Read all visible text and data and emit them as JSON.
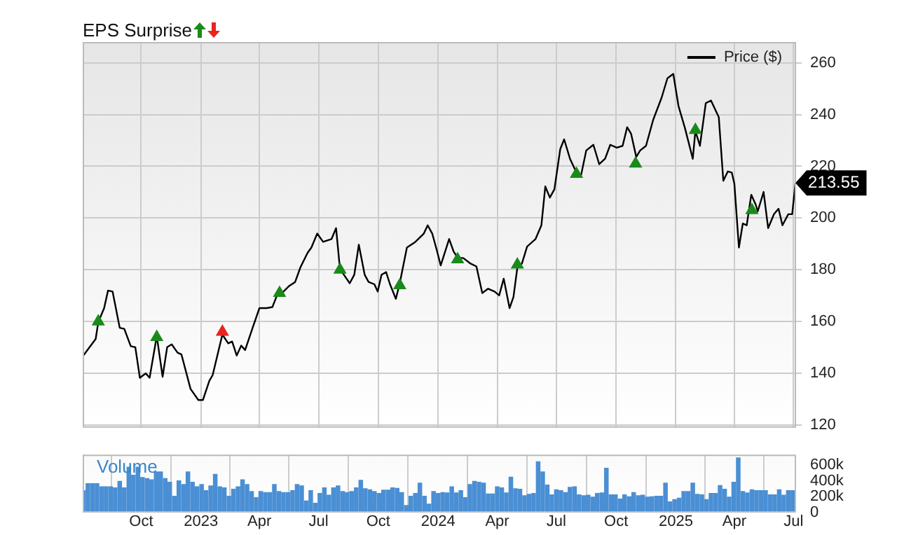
{
  "chart_data": [
    {
      "type": "line",
      "title": "EPS Surprise",
      "legend": "top right",
      "grid": true,
      "tick_labels": "y",
      "xlim": [
        "2022-07-03",
        "2025-07-05"
      ],
      "xticks": [
        {
          "value": "2022-10-01",
          "label": null
        },
        {
          "value": "2023-01-01",
          "label": null
        },
        {
          "value": "2023-04-01",
          "label": null
        },
        {
          "value": "2023-07-01",
          "label": null
        },
        {
          "value": "2023-10-01",
          "label": null
        },
        {
          "value": "2024-01-01",
          "label": null
        },
        {
          "value": "2024-04-01",
          "label": null
        },
        {
          "value": "2024-07-01",
          "label": null
        },
        {
          "value": "2024-10-01",
          "label": null
        },
        {
          "value": "2025-01-01",
          "label": null
        },
        {
          "value": "2025-04-01",
          "label": null
        },
        {
          "value": "2025-07-01",
          "label": null
        }
      ],
      "ylim": [
        119,
        268
      ],
      "yticks": [
        120,
        140,
        160,
        180,
        200,
        220,
        240,
        260
      ],
      "annotations": [
        {
          "text": "213.55",
          "x": "2025-07-04",
          "y": 213.55
        }
      ],
      "series": [
        {
          "name": "Price ($)",
          "color": "#000000",
          "x": [
            "2022-07-04",
            "2022-07-23",
            "2022-07-27",
            "2022-08-05",
            "2022-08-11",
            "2022-08-18",
            "2022-08-29",
            "2022-09-05",
            "2022-09-15",
            "2022-09-22",
            "2022-09-29",
            "2022-10-08",
            "2022-10-14",
            "2022-10-25",
            "2022-11-03",
            "2022-11-10",
            "2022-11-17",
            "2022-11-26",
            "2022-12-02",
            "2022-12-16",
            "2022-12-28",
            "2023-01-04",
            "2023-01-14",
            "2023-01-19",
            "2023-02-03",
            "2023-02-12",
            "2023-02-18",
            "2023-02-25",
            "2023-03-04",
            "2023-03-10",
            "2023-03-21",
            "2023-04-01",
            "2023-04-12",
            "2023-04-21",
            "2023-04-27",
            "2023-05-02",
            "2023-05-08",
            "2023-05-17",
            "2023-05-26",
            "2023-06-03",
            "2023-06-14",
            "2023-06-20",
            "2023-06-29",
            "2023-07-08",
            "2023-07-21",
            "2023-07-28",
            "2023-08-03",
            "2023-08-09",
            "2023-08-18",
            "2023-08-25",
            "2023-09-01",
            "2023-09-10",
            "2023-09-16",
            "2023-09-25",
            "2023-09-30",
            "2023-10-06",
            "2023-10-13",
            "2023-10-19",
            "2023-10-28",
            "2023-11-03",
            "2023-11-14",
            "2023-11-27",
            "2023-12-10",
            "2023-12-16",
            "2023-12-23",
            "2023-12-30",
            "2024-01-05",
            "2024-01-18",
            "2024-01-25",
            "2024-01-31",
            "2024-02-09",
            "2024-02-20",
            "2024-02-29",
            "2024-03-09",
            "2024-03-18",
            "2024-03-28",
            "2024-04-04",
            "2024-04-11",
            "2024-04-20",
            "2024-04-26",
            "2024-05-02",
            "2024-05-09",
            "2024-05-17",
            "2024-05-30",
            "2024-06-08",
            "2024-06-14",
            "2024-06-21",
            "2024-06-28",
            "2024-07-07",
            "2024-07-13",
            "2024-07-22",
            "2024-07-30",
            "2024-08-08",
            "2024-08-16",
            "2024-08-27",
            "2024-09-05",
            "2024-09-14",
            "2024-09-22",
            "2024-10-02",
            "2024-10-11",
            "2024-10-18",
            "2024-10-24",
            "2024-11-01",
            "2024-11-07",
            "2024-11-16",
            "2024-11-27",
            "2024-12-10",
            "2024-12-19",
            "2024-12-28",
            "2025-01-05",
            "2025-01-15",
            "2025-01-27",
            "2025-01-31",
            "2025-02-07",
            "2025-02-16",
            "2025-02-24",
            "2025-03-08",
            "2025-03-15",
            "2025-03-22",
            "2025-03-28",
            "2025-04-01",
            "2025-04-08",
            "2025-04-14",
            "2025-04-20",
            "2025-04-27",
            "2025-05-04",
            "2025-05-07",
            "2025-05-16",
            "2025-05-23",
            "2025-06-01",
            "2025-06-08",
            "2025-06-14",
            "2025-06-23",
            "2025-06-29",
            "2025-07-04"
          ],
          "values": [
            146.9,
            153.3,
            159.8,
            165.2,
            172.0,
            171.6,
            157.6,
            157.2,
            150.5,
            150.1,
            138.3,
            140.0,
            138.3,
            154.4,
            138.7,
            150.1,
            151.2,
            148.0,
            147.3,
            134.0,
            129.7,
            129.7,
            137.2,
            139.3,
            155.0,
            151.6,
            152.3,
            146.9,
            150.7,
            149.0,
            157.2,
            165.2,
            165.2,
            165.6,
            169.5,
            170.5,
            171.6,
            173.8,
            175.3,
            180.9,
            186.5,
            188.6,
            194.0,
            190.8,
            191.9,
            196.1,
            180.2,
            178.1,
            174.8,
            178.1,
            189.7,
            178.1,
            175.3,
            174.4,
            171.6,
            178.1,
            179.1,
            174.4,
            168.8,
            174.8,
            188.6,
            190.8,
            194.0,
            197.2,
            194.0,
            187.6,
            181.7,
            191.9,
            187.0,
            184.7,
            184.5,
            182.4,
            181.3,
            171.0,
            172.7,
            171.6,
            170.1,
            176.6,
            165.2,
            169.5,
            180.9,
            182.4,
            189.0,
            191.9,
            197.2,
            212.2,
            207.9,
            211.1,
            226.6,
            230.4,
            222.9,
            218.6,
            216.5,
            226.1,
            228.3,
            220.8,
            222.9,
            228.3,
            227.2,
            227.9,
            235.1,
            232.6,
            223.6,
            226.1,
            227.9,
            237.9,
            246.5,
            254.0,
            255.7,
            243.3,
            234.7,
            222.9,
            233.6,
            227.9,
            244.4,
            245.4,
            239.0,
            214.4,
            218.0,
            217.6,
            213.3,
            188.6,
            197.9,
            197.2,
            209.0,
            205.1,
            202.6,
            210.1,
            196.1,
            201.5,
            203.6,
            197.2,
            201.5,
            201.5,
            213.55
          ]
        },
        {
          "type": "scatter",
          "marker": "triangle",
          "color": "#1a8a1a",
          "x": [
            "2022-07-27",
            "2022-10-25",
            "2023-05-02",
            "2023-08-03",
            "2023-11-03",
            "2024-01-31",
            "2024-05-02",
            "2024-08-01",
            "2024-10-31",
            "2025-01-31",
            "2025-04-28"
          ],
          "values": [
            160,
            154,
            171,
            180,
            174,
            184,
            182,
            217,
            221,
            234,
            203
          ]
        },
        {
          "type": "scatter",
          "marker": "triangle",
          "color": "#e8251f",
          "x": [
            "2023-02-03"
          ],
          "values": [
            156
          ]
        }
      ]
    },
    {
      "type": "bar",
      "title": "Volume",
      "grid": "x",
      "xlim": [
        "2022-07-03",
        "2025-07-05"
      ],
      "xticks": [
        {
          "value": "2022-10-01",
          "label": "Oct"
        },
        {
          "value": "2023-01-01",
          "label": "2023"
        },
        {
          "value": "2023-04-01",
          "label": "Apr"
        },
        {
          "value": "2023-07-01",
          "label": "Jul"
        },
        {
          "value": "2023-10-01",
          "label": "Oct"
        },
        {
          "value": "2024-01-01",
          "label": "2024"
        },
        {
          "value": "2024-04-01",
          "label": "Apr"
        },
        {
          "value": "2024-07-01",
          "label": "Jul"
        },
        {
          "value": "2024-10-01",
          "label": "Oct"
        },
        {
          "value": "2025-01-01",
          "label": "2025"
        },
        {
          "value": "2025-04-01",
          "label": "Apr"
        },
        {
          "value": "2025-07-01",
          "label": "Jul"
        }
      ],
      "ylim": [
        0,
        730000
      ],
      "yticks": [
        0,
        {
          "value": 200000,
          "label": "200k"
        },
        {
          "value": 400000,
          "label": "400k"
        },
        {
          "value": 600000,
          "label": "600k"
        }
      ],
      "series": [
        {
          "color": "#4a8fd4",
          "x": [
            "2022-07-04",
            "2022-07-11",
            "2022-07-18",
            "2022-07-25",
            "2022-08-01",
            "2022-08-08",
            "2022-08-15",
            "2022-08-22",
            "2022-08-29",
            "2022-09-05",
            "2022-09-12",
            "2022-09-19",
            "2022-09-26",
            "2022-10-03",
            "2022-10-10",
            "2022-10-17",
            "2022-10-24",
            "2022-10-31",
            "2022-11-07",
            "2022-11-14",
            "2022-11-21",
            "2022-11-28",
            "2022-12-05",
            "2022-12-12",
            "2022-12-19",
            "2022-12-26",
            "2023-01-02",
            "2023-01-09",
            "2023-01-16",
            "2023-01-23",
            "2023-01-30",
            "2023-02-06",
            "2023-02-13",
            "2023-02-20",
            "2023-02-27",
            "2023-03-06",
            "2023-03-13",
            "2023-03-20",
            "2023-03-27",
            "2023-04-03",
            "2023-04-10",
            "2023-04-17",
            "2023-04-24",
            "2023-05-01",
            "2023-05-08",
            "2023-05-15",
            "2023-05-22",
            "2023-05-29",
            "2023-06-05",
            "2023-06-12",
            "2023-06-19",
            "2023-06-26",
            "2023-07-03",
            "2023-07-10",
            "2023-07-17",
            "2023-07-24",
            "2023-07-31",
            "2023-08-07",
            "2023-08-14",
            "2023-08-21",
            "2023-08-28",
            "2023-09-04",
            "2023-09-11",
            "2023-09-18",
            "2023-09-25",
            "2023-10-02",
            "2023-10-09",
            "2023-10-16",
            "2023-10-23",
            "2023-10-30",
            "2023-11-06",
            "2023-11-13",
            "2023-11-20",
            "2023-11-27",
            "2023-12-04",
            "2023-12-11",
            "2023-12-18",
            "2023-12-25",
            "2024-01-01",
            "2024-01-08",
            "2024-01-15",
            "2024-01-22",
            "2024-01-29",
            "2024-02-05",
            "2024-02-12",
            "2024-02-19",
            "2024-02-26",
            "2024-03-04",
            "2024-03-11",
            "2024-03-18",
            "2024-03-25",
            "2024-04-01",
            "2024-04-08",
            "2024-04-15",
            "2024-04-22",
            "2024-04-29",
            "2024-05-06",
            "2024-05-13",
            "2024-05-20",
            "2024-05-27",
            "2024-06-03",
            "2024-06-10",
            "2024-06-17",
            "2024-06-24",
            "2024-07-01",
            "2024-07-08",
            "2024-07-15",
            "2024-07-22",
            "2024-07-29",
            "2024-08-05",
            "2024-08-12",
            "2024-08-19",
            "2024-08-26",
            "2024-09-02",
            "2024-09-09",
            "2024-09-16",
            "2024-09-23",
            "2024-09-30",
            "2024-10-07",
            "2024-10-14",
            "2024-10-21",
            "2024-10-28",
            "2024-11-04",
            "2024-11-11",
            "2024-11-18",
            "2024-11-25",
            "2024-12-02",
            "2024-12-09",
            "2024-12-16",
            "2024-12-23",
            "2024-12-30",
            "2025-01-06",
            "2025-01-13",
            "2025-01-20",
            "2025-01-27",
            "2025-02-03",
            "2025-02-10",
            "2025-02-17",
            "2025-02-24",
            "2025-03-03",
            "2025-03-10",
            "2025-03-17",
            "2025-03-24",
            "2025-03-31",
            "2025-04-07",
            "2025-04-14",
            "2025-04-21",
            "2025-04-28",
            "2025-05-05",
            "2025-05-12",
            "2025-05-19",
            "2025-05-26",
            "2025-06-02",
            "2025-06-09",
            "2025-06-16",
            "2025-06-23",
            "2025-06-30"
          ],
          "values": [
            276000,
            365000,
            365000,
            365000,
            324000,
            324000,
            324000,
            312000,
            394000,
            312000,
            571000,
            471000,
            571000,
            441000,
            429000,
            412000,
            512000,
            512000,
            429000,
            382000,
            206000,
            400000,
            353000,
            512000,
            382000,
            324000,
            353000,
            276000,
            335000,
            482000,
            324000,
            312000,
            206000,
            294000,
            324000,
            412000,
            353000,
            265000,
            188000,
            265000,
            253000,
            253000,
            353000,
            265000,
            253000,
            253000,
            276000,
            353000,
            335000,
            147000,
            276000,
            118000,
            241000,
            312000,
            218000,
            312000,
            335000,
            265000,
            253000,
            265000,
            312000,
            406000,
            300000,
            288000,
            265000,
            241000,
            282000,
            282000,
            312000,
            306000,
            253000,
            88000,
            206000,
            241000,
            371000,
            206000,
            106000,
            265000,
            241000,
            253000,
            247000,
            324000,
            247000,
            276000,
            188000,
            353000,
            394000,
            382000,
            371000,
            235000,
            235000,
            324000,
            312000,
            247000,
            447000,
            300000,
            294000,
            212000,
            229000,
            241000,
            641000,
            512000,
            347000,
            224000,
            288000,
            276000,
            253000,
            318000,
            324000,
            224000,
            212000,
            218000,
            194000,
            241000,
            247000,
            559000,
            224000,
            224000,
            171000,
            224000,
            200000,
            253000,
            212000,
            218000,
            194000,
            200000,
            206000,
            206000,
            371000,
            135000,
            165000,
            182000,
            265000,
            265000,
            371000,
            229000,
            224000,
            165000,
            241000,
            241000,
            341000,
            294000,
            194000,
            382000,
            688000,
            265000,
            247000,
            288000,
            276000,
            276000,
            276000,
            224000,
            224000,
            288000,
            218000,
            276000,
            276000
          ]
        }
      ]
    }
  ]
}
